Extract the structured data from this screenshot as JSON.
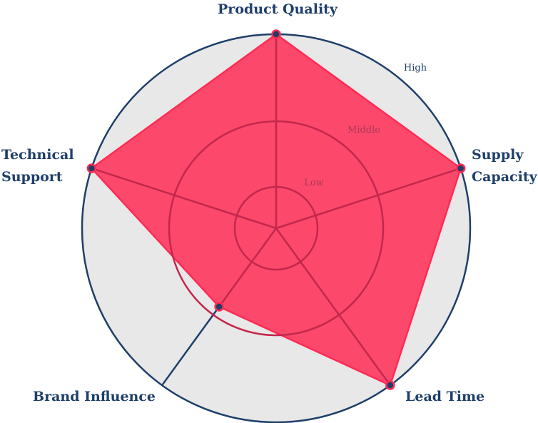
{
  "chart_data": {
    "type": "radar",
    "axes": [
      {
        "label": "Product Quality"
      },
      {
        "label": "Supply Capacity"
      },
      {
        "label": "Lead Time"
      },
      {
        "label": "Brand Influence"
      },
      {
        "label": "Technical Support"
      }
    ],
    "levels": [
      "Low",
      "Middle",
      "High"
    ],
    "values": [
      3,
      3,
      3,
      1.5,
      3
    ],
    "max": 3,
    "colors": {
      "fill": "#ff2b55",
      "stroke": "#ff2b55",
      "marker_fill": "#1e3f66",
      "marker_stroke": "#ff2b55",
      "outer_ring": "#1f3f6a",
      "background": "#e8e8e8",
      "inner_grid": "#c2284c",
      "axis_text": "#1f3f6a"
    }
  }
}
